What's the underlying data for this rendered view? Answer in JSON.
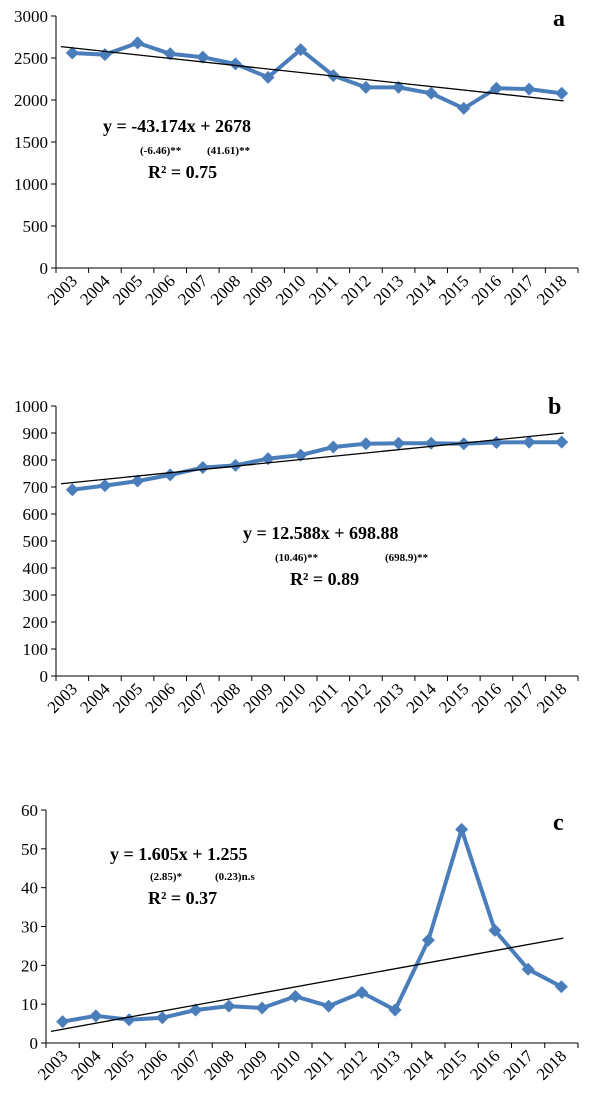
{
  "chart_data": [
    {
      "type": "line",
      "panel_label": "a",
      "categories": [
        "2003",
        "2004",
        "2005",
        "2006",
        "2007",
        "2008",
        "2009",
        "2010",
        "2011",
        "2012",
        "2013",
        "2014",
        "2015",
        "2016",
        "2017",
        "2018"
      ],
      "values": [
        2560,
        2540,
        2680,
        2550,
        2510,
        2430,
        2270,
        2600,
        2290,
        2150,
        2150,
        2080,
        1900,
        2140,
        2130,
        2080
      ],
      "trendline": {
        "start": 2635,
        "end": 1990
      },
      "equation": "y = -43.174x + 2678",
      "coef_stats": [
        "(-6.46)**",
        "(41.61)**"
      ],
      "r2": "R² = 0.75",
      "ylim": [
        0,
        3000
      ],
      "yticks": [
        0,
        500,
        1000,
        1500,
        2000,
        2500,
        3000
      ],
      "colors": {
        "series": "#4a7ebb",
        "trend": "#000000"
      }
    },
    {
      "type": "line",
      "panel_label": "b",
      "categories": [
        "2003",
        "2004",
        "2005",
        "2006",
        "2007",
        "2008",
        "2009",
        "2010",
        "2011",
        "2012",
        "2013",
        "2014",
        "2015",
        "2016",
        "2017",
        "2018"
      ],
      "values": [
        690,
        705,
        722,
        745,
        772,
        780,
        805,
        818,
        848,
        860,
        862,
        862,
        860,
        865,
        866,
        866
      ],
      "trendline": {
        "start": 712,
        "end": 900
      },
      "equation": "y = 12.588x + 698.88",
      "coef_stats": [
        "(10.46)**",
        "(698.9)**"
      ],
      "r2": "R² = 0.89",
      "ylim": [
        0,
        1000
      ],
      "yticks": [
        0,
        100,
        200,
        300,
        400,
        500,
        600,
        700,
        800,
        900,
        1000
      ],
      "colors": {
        "series": "#4a7ebb",
        "trend": "#000000"
      }
    },
    {
      "type": "line",
      "panel_label": "c",
      "categories": [
        "2003",
        "2004",
        "2005",
        "2006",
        "2007",
        "2008",
        "2009",
        "2010",
        "2011",
        "2012",
        "2013",
        "2014",
        "2015",
        "2016",
        "2017",
        "2018"
      ],
      "values": [
        5.5,
        7,
        6,
        6.5,
        8.5,
        9.5,
        9,
        12,
        9.5,
        13,
        8.5,
        26.5,
        55,
        29,
        19,
        14.5
      ],
      "trendline": {
        "start": 3,
        "end": 27
      },
      "equation": "y = 1.605x + 1.255",
      "coef_stats": [
        "(2.85)*",
        "(0.23)n.s"
      ],
      "r2": "R² = 0.37",
      "ylim": [
        0,
        60
      ],
      "yticks": [
        0,
        10,
        20,
        30,
        40,
        50,
        60
      ],
      "colors": {
        "series": "#4a7ebb",
        "trend": "#000000"
      }
    }
  ]
}
